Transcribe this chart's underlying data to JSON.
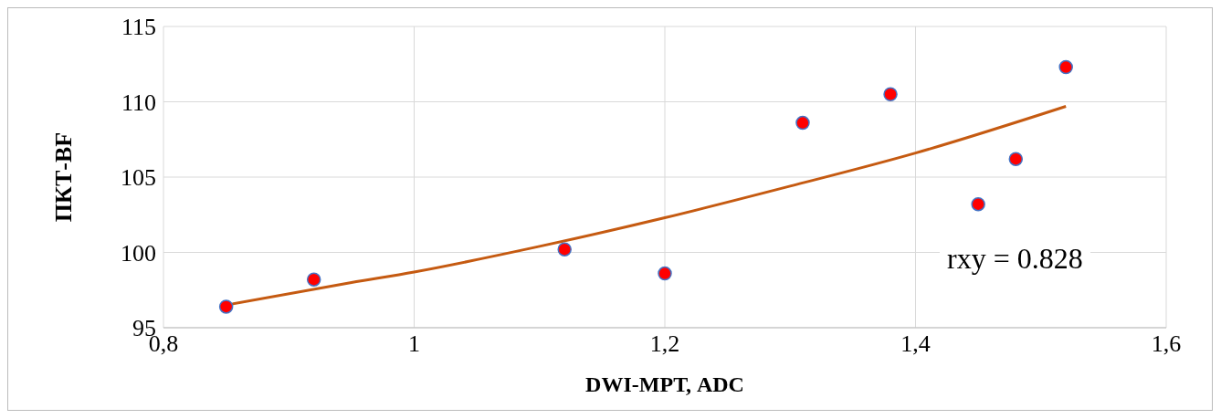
{
  "chart_data": {
    "type": "scatter",
    "xlabel": "DWI-МРТ, ADC",
    "ylabel": "ПКТ-BF",
    "xlim": [
      0.8,
      1.6
    ],
    "xticks": [
      {
        "value": 0.8,
        "label": "0,8"
      },
      1,
      {
        "value": 1.2,
        "label": "1,2"
      },
      {
        "value": 1.4,
        "label": "1,4"
      },
      {
        "value": 1.6,
        "label": "1,6"
      }
    ],
    "ylim": [
      95,
      115
    ],
    "yticks": [
      95,
      100,
      105,
      110,
      115
    ],
    "grid": true,
    "marker": "circle",
    "series": [
      {
        "color": "#ff0000",
        "x": [
          0.85,
          0.92,
          1.12,
          1.2,
          1.31,
          1.38,
          1.45,
          1.48,
          1.52
        ],
        "values": [
          96.4,
          98.2,
          100.2,
          98.6,
          108.6,
          110.5,
          103.2,
          106.2,
          112.3
        ]
      },
      {
        "type": "line",
        "color": "#c55a11",
        "marker": "none",
        "line_style": "solid",
        "x": [
          0.85,
          0.95,
          1.0,
          1.1,
          1.2,
          1.3,
          1.4,
          1.52
        ],
        "values": [
          96.5,
          98.0,
          98.7,
          100.4,
          102.3,
          104.4,
          106.6,
          109.7
        ]
      }
    ],
    "annotations": [
      "rxy = 0.828"
    ]
  }
}
